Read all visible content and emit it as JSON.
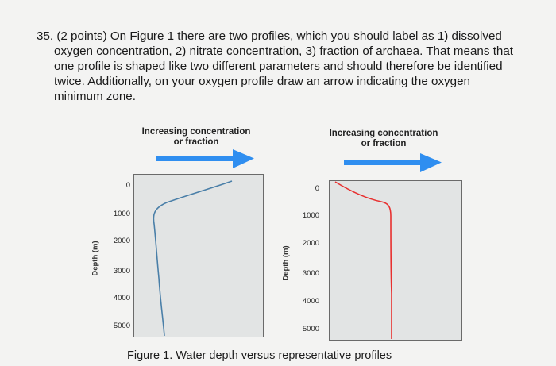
{
  "question": {
    "lines": [
      "35. (2 points) On Figure 1 there are two profiles, which you should label as 1) dissolved",
      "oxygen concentration, 2) nitrate concentration, 3) fraction of archaea. That means that",
      "one profile is shaped like two different parameters and should therefore be identified",
      "twice. Additionally, on your oxygen profile draw an arrow indicating the oxygen",
      "minimum zone."
    ]
  },
  "figure": {
    "caption": "Figure 1. Water depth versus representative profiles",
    "panels": [
      {
        "header_line1": "Increasing concentration",
        "header_line2": "or fraction",
        "y_label": "Depth (m)",
        "y_ticks": [
          "0",
          "1000",
          "2000",
          "3000",
          "4000",
          "5000"
        ],
        "line_color": "#4a7fa8",
        "arrow_color": "#2f8ef0"
      },
      {
        "header_line1": "Increasing concentration",
        "header_line2": "or fraction",
        "y_label": "Depth (m)",
        "y_ticks": [
          "0",
          "1000",
          "2000",
          "3000",
          "4000",
          "5000"
        ],
        "line_color": "#e8302f",
        "arrow_color": "#2f8ef0"
      }
    ]
  },
  "chart_data": [
    {
      "type": "line",
      "ylabel": "Depth (m)",
      "ylim": [
        0,
        5000
      ],
      "y_inverted": true,
      "xlabel": "Increasing concentration or fraction",
      "profile_description": "high at surface, sharp decrease to minimum near ~1000 m, then gradual increase with depth",
      "points": [
        [
          0.9,
          0
        ],
        [
          0.3,
          700
        ],
        [
          0.05,
          1100
        ],
        [
          0.06,
          2000
        ],
        [
          0.11,
          3000
        ],
        [
          0.15,
          4000
        ],
        [
          0.17,
          5000
        ]
      ]
    },
    {
      "type": "line",
      "ylabel": "Depth (m)",
      "ylim": [
        0,
        5000
      ],
      "y_inverted": true,
      "xlabel": "Increasing concentration or fraction",
      "profile_description": "low at surface, sharp increase to ~1000 m, then nearly constant with depth",
      "points": [
        [
          0.05,
          0
        ],
        [
          0.4,
          500
        ],
        [
          0.7,
          900
        ],
        [
          0.72,
          2000
        ],
        [
          0.73,
          3000
        ],
        [
          0.73,
          4000
        ],
        [
          0.73,
          5000
        ]
      ]
    }
  ]
}
